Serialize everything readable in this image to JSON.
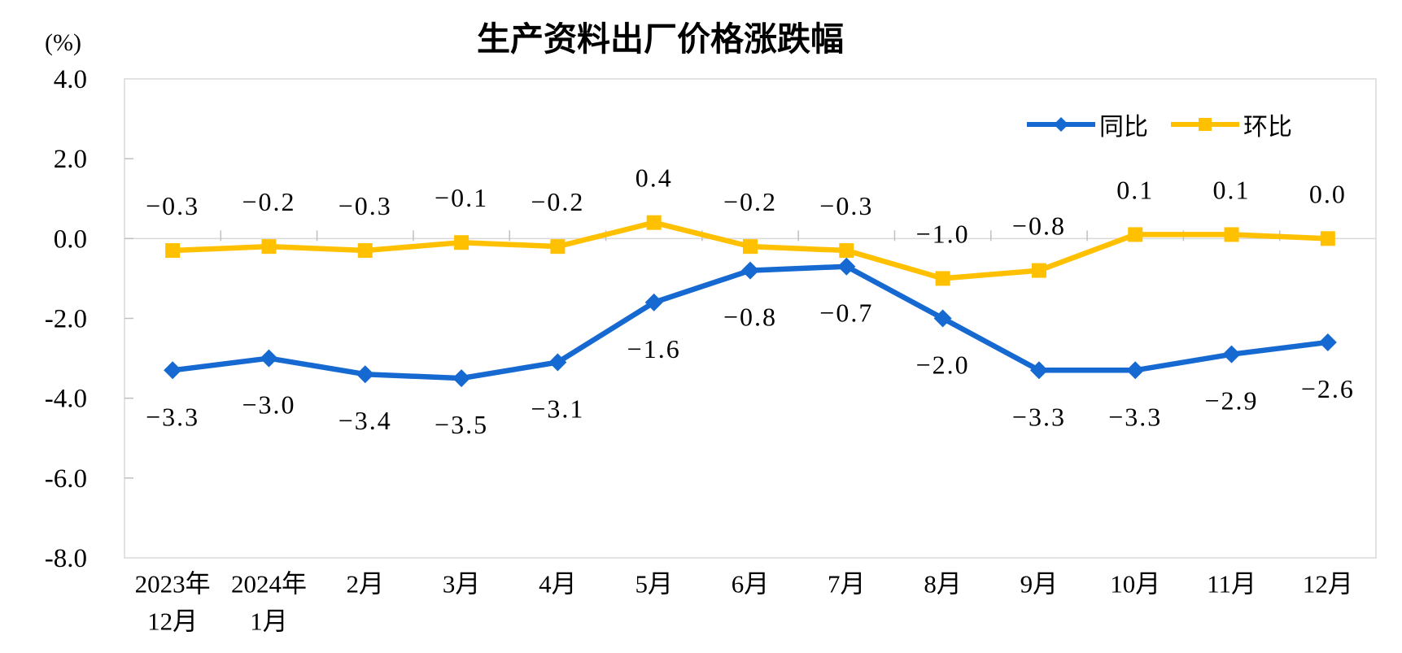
{
  "title": "生产资料出厂价格涨跌幅",
  "y_axis_unit": "(%)",
  "legend": {
    "items": [
      {
        "label": "同比",
        "swatch": "blue-line-diamond"
      },
      {
        "label": "环比",
        "swatch": "gold-line-square"
      }
    ],
    "position": "top-right-inside"
  },
  "colors": {
    "yoy_blue": "#1569D0",
    "mom_gold": "#FFC000",
    "axis_gray": "#D9D9D9",
    "tick_gray": "#C0C0C0",
    "text": "#000000",
    "background": "#FFFFFF"
  },
  "chart_data": {
    "type": "line",
    "title": "生产资料出厂价格涨跌幅",
    "ylabel": "(%)",
    "categories": [
      "2023年12月",
      "2024年1月",
      "2月",
      "3月",
      "4月",
      "5月",
      "6月",
      "7月",
      "8月",
      "9月",
      "10月",
      "11月",
      "12月"
    ],
    "category_label_lines": [
      [
        "2023年",
        "12月"
      ],
      [
        "2024年",
        "1月"
      ],
      [
        "2月"
      ],
      [
        "3月"
      ],
      [
        "4月"
      ],
      [
        "5月"
      ],
      [
        "6月"
      ],
      [
        "7月"
      ],
      [
        "8月"
      ],
      [
        "9月"
      ],
      [
        "10月"
      ],
      [
        "11月"
      ],
      [
        "12月"
      ]
    ],
    "series": [
      {
        "name": "同比",
        "color": "#1569D0",
        "marker": "diamond",
        "label_position": "below",
        "values": [
          -3.3,
          -3.0,
          -3.4,
          -3.5,
          -3.1,
          -1.6,
          -0.8,
          -0.7,
          -2.0,
          -3.3,
          -3.3,
          -2.9,
          -2.6
        ]
      },
      {
        "name": "环比",
        "color": "#FFC000",
        "marker": "square",
        "label_position": "above",
        "values": [
          -0.3,
          -0.2,
          -0.3,
          -0.1,
          -0.2,
          0.4,
          -0.2,
          -0.3,
          -1.0,
          -0.8,
          0.1,
          0.1,
          0.0
        ]
      }
    ],
    "ylim": [
      -8.0,
      4.0
    ],
    "ytick_step": 2.0,
    "ytick_labels": [
      "4.0",
      "2.0",
      "0.0",
      "-2.0",
      "-4.0",
      "-6.0",
      "-8.0"
    ],
    "grid": "zero-baseline-only",
    "legend_position": "top-right-inside",
    "data_labels_shown": true
  }
}
